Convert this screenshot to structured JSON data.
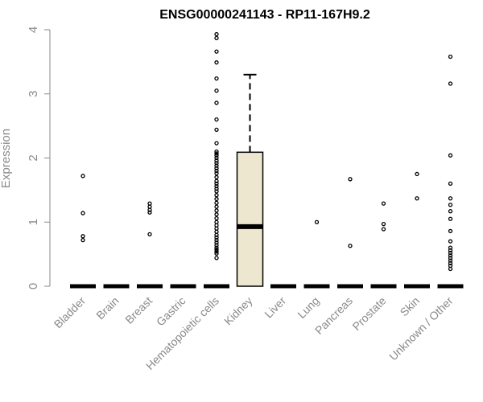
{
  "chart_data": {
    "type": "box",
    "title": "ENSG00000241143 - RP11-167H9.2",
    "xlabel": "",
    "ylabel": "Expression",
    "ylim": [
      0,
      4
    ],
    "yticks": [
      0,
      1,
      2,
      3,
      4
    ],
    "grid": false,
    "box_fill": "#ede7cf",
    "categories": [
      "Bladder",
      "Brain",
      "Breast",
      "Gastric",
      "Hematopoietic cells",
      "Kidney",
      "Liver",
      "Lung",
      "Pancreas",
      "Prostate",
      "Skin",
      "Unknown / Other"
    ],
    "boxes": [
      {
        "category": "Bladder",
        "q1": 0,
        "median": 0,
        "q3": 0,
        "whisker_low": 0,
        "whisker_high": 0,
        "outliers": [
          1.72,
          1.14,
          0.78,
          0.72
        ]
      },
      {
        "category": "Brain",
        "q1": 0,
        "median": 0,
        "q3": 0,
        "whisker_low": 0,
        "whisker_high": 0,
        "outliers": []
      },
      {
        "category": "Breast",
        "q1": 0,
        "median": 0,
        "q3": 0,
        "whisker_low": 0,
        "whisker_high": 0,
        "outliers": [
          1.29,
          1.24,
          1.19,
          1.15,
          0.81
        ]
      },
      {
        "category": "Gastric",
        "q1": 0,
        "median": 0,
        "q3": 0,
        "whisker_low": 0,
        "whisker_high": 0,
        "outliers": []
      },
      {
        "category": "Hematopoietic cells",
        "q1": 0,
        "median": 0,
        "q3": 0,
        "whisker_low": 0,
        "whisker_high": 0,
        "outliers": [
          3.93,
          3.87,
          3.66,
          3.49,
          3.24,
          3.05,
          2.86,
          2.6,
          2.44,
          2.23,
          2.1,
          2.07,
          2.04,
          2.0,
          1.96,
          1.92,
          1.88,
          1.84,
          1.8,
          1.76,
          1.7,
          1.64,
          1.6,
          1.56,
          1.52,
          1.48,
          1.42,
          1.36,
          1.3,
          1.24,
          1.18,
          1.12,
          1.06,
          1.0,
          0.95,
          0.9,
          0.85,
          0.8,
          0.76,
          0.72,
          0.68,
          0.64,
          0.6,
          0.57,
          0.54,
          0.51,
          0.44
        ]
      },
      {
        "category": "Kidney",
        "q1": 0,
        "median": 0.93,
        "q3": 2.09,
        "whisker_low": 0,
        "whisker_high": 3.3,
        "outliers": []
      },
      {
        "category": "Liver",
        "q1": 0,
        "median": 0,
        "q3": 0,
        "whisker_low": 0,
        "whisker_high": 0,
        "outliers": []
      },
      {
        "category": "Lung",
        "q1": 0,
        "median": 0,
        "q3": 0,
        "whisker_low": 0,
        "whisker_high": 0,
        "outliers": [
          1.0
        ]
      },
      {
        "category": "Pancreas",
        "q1": 0,
        "median": 0,
        "q3": 0,
        "whisker_low": 0,
        "whisker_high": 0,
        "outliers": [
          1.67,
          0.63
        ]
      },
      {
        "category": "Prostate",
        "q1": 0,
        "median": 0,
        "q3": 0,
        "whisker_low": 0,
        "whisker_high": 0,
        "outliers": [
          1.29,
          0.97,
          0.89
        ]
      },
      {
        "category": "Skin",
        "q1": 0,
        "median": 0,
        "q3": 0,
        "whisker_low": 0,
        "whisker_high": 0,
        "outliers": [
          1.75,
          1.37
        ]
      },
      {
        "category": "Unknown / Other",
        "q1": 0,
        "median": 0,
        "q3": 0,
        "whisker_low": 0,
        "whisker_high": 0,
        "outliers": [
          3.58,
          3.16,
          2.04,
          1.6,
          1.37,
          1.27,
          1.17,
          1.05,
          0.86,
          0.7,
          0.6,
          0.56,
          0.52,
          0.48,
          0.44,
          0.4,
          0.36,
          0.32,
          0.27
        ]
      }
    ]
  }
}
